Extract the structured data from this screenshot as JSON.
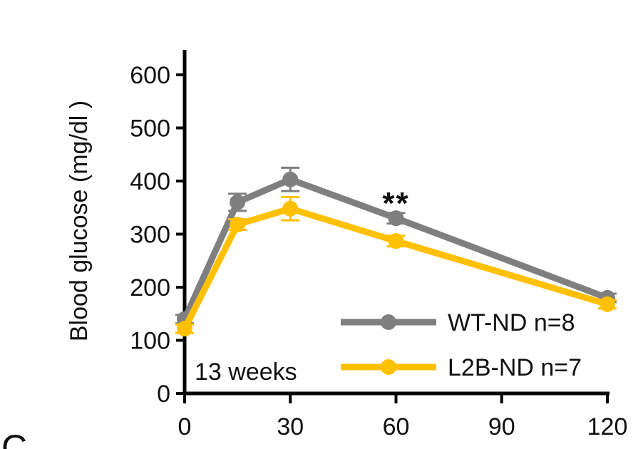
{
  "chart_data": {
    "type": "line",
    "x": [
      0,
      15,
      30,
      60,
      120
    ],
    "series": [
      {
        "name": "WT-ND n=8",
        "color": "#7f7f7f",
        "values": [
          140,
          360,
          403,
          330,
          180
        ],
        "errors": [
          8,
          16,
          22,
          10,
          8
        ]
      },
      {
        "name": "L2B-ND n=7",
        "color": "#ffc000",
        "values": [
          122,
          318,
          348,
          287,
          168
        ],
        "errors": [
          8,
          10,
          22,
          10,
          8
        ]
      }
    ],
    "title": "",
    "xlabel": "",
    "ylabel": "Blood glucose (mg/dl )",
    "xlim": [
      0,
      120
    ],
    "ylim": [
      0,
      600
    ],
    "xticks": [
      0,
      30,
      60,
      90,
      120
    ],
    "yticks": [
      0,
      100,
      200,
      300,
      400,
      500,
      600
    ],
    "grid": false,
    "legend": "bottom-right",
    "annotations": [
      {
        "text": "13 weeks",
        "position": "bottom-left"
      },
      {
        "text": "**",
        "x": 60,
        "y": 360
      }
    ],
    "corner_label": "C"
  }
}
